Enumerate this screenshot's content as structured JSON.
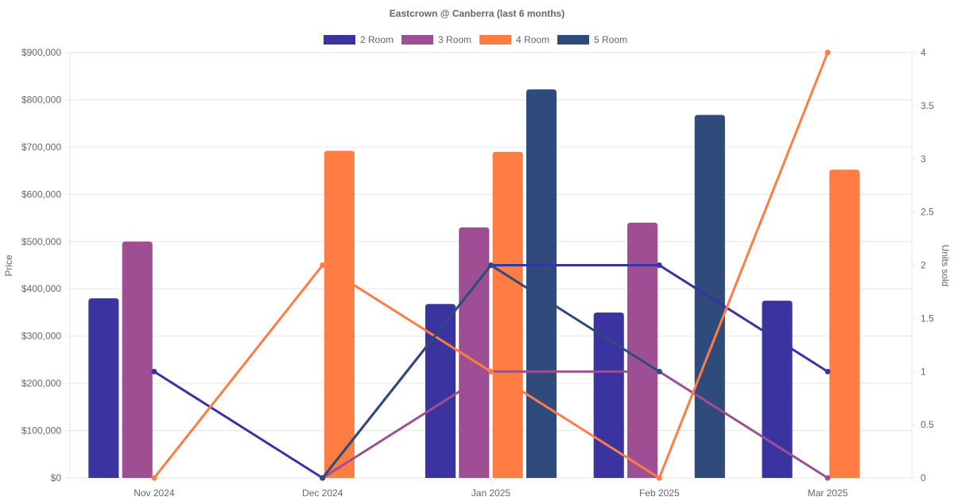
{
  "chart_data": {
    "type": "bar",
    "title": "Eastcrown @ Canberra (last 6 months)",
    "categories": [
      "Nov 2024",
      "Dec 2024",
      "Jan 2025",
      "Feb 2025",
      "Mar 2025"
    ],
    "y_left": {
      "label": "Price",
      "min": 0,
      "max": 900000,
      "step": 100000,
      "tick_labels": [
        "$0",
        "$100,000",
        "$200,000",
        "$300,000",
        "$400,000",
        "$500,000",
        "$600,000",
        "$700,000",
        "$800,000",
        "$900,000"
      ]
    },
    "y_right": {
      "label": "Units sold",
      "min": 0,
      "max": 4,
      "step": 0.5,
      "tick_labels": [
        "0",
        "0.5",
        "1",
        "1.5",
        "2",
        "2.5",
        "3",
        "3.5",
        "4"
      ]
    },
    "series": [
      {
        "name": "2 Room",
        "color": "#3a33a0",
        "price": [
          380000,
          null,
          368000,
          350000,
          375000
        ],
        "units": [
          1,
          0,
          2,
          2,
          1
        ]
      },
      {
        "name": "3 Room",
        "color": "#9e4f93",
        "price": [
          500000,
          null,
          530000,
          540000,
          null
        ],
        "units": [
          null,
          0,
          1,
          1,
          0
        ]
      },
      {
        "name": "4 Room",
        "color": "#ff7c43",
        "price": [
          null,
          692000,
          690000,
          null,
          652000
        ],
        "units": [
          0,
          2,
          1,
          0,
          4
        ]
      },
      {
        "name": "5 Room",
        "color": "#2f4b7c",
        "price": [
          null,
          null,
          822000,
          768000,
          null
        ],
        "units": [
          null,
          0,
          2,
          1,
          null
        ]
      }
    ],
    "legend_position": "top",
    "grid": true
  }
}
